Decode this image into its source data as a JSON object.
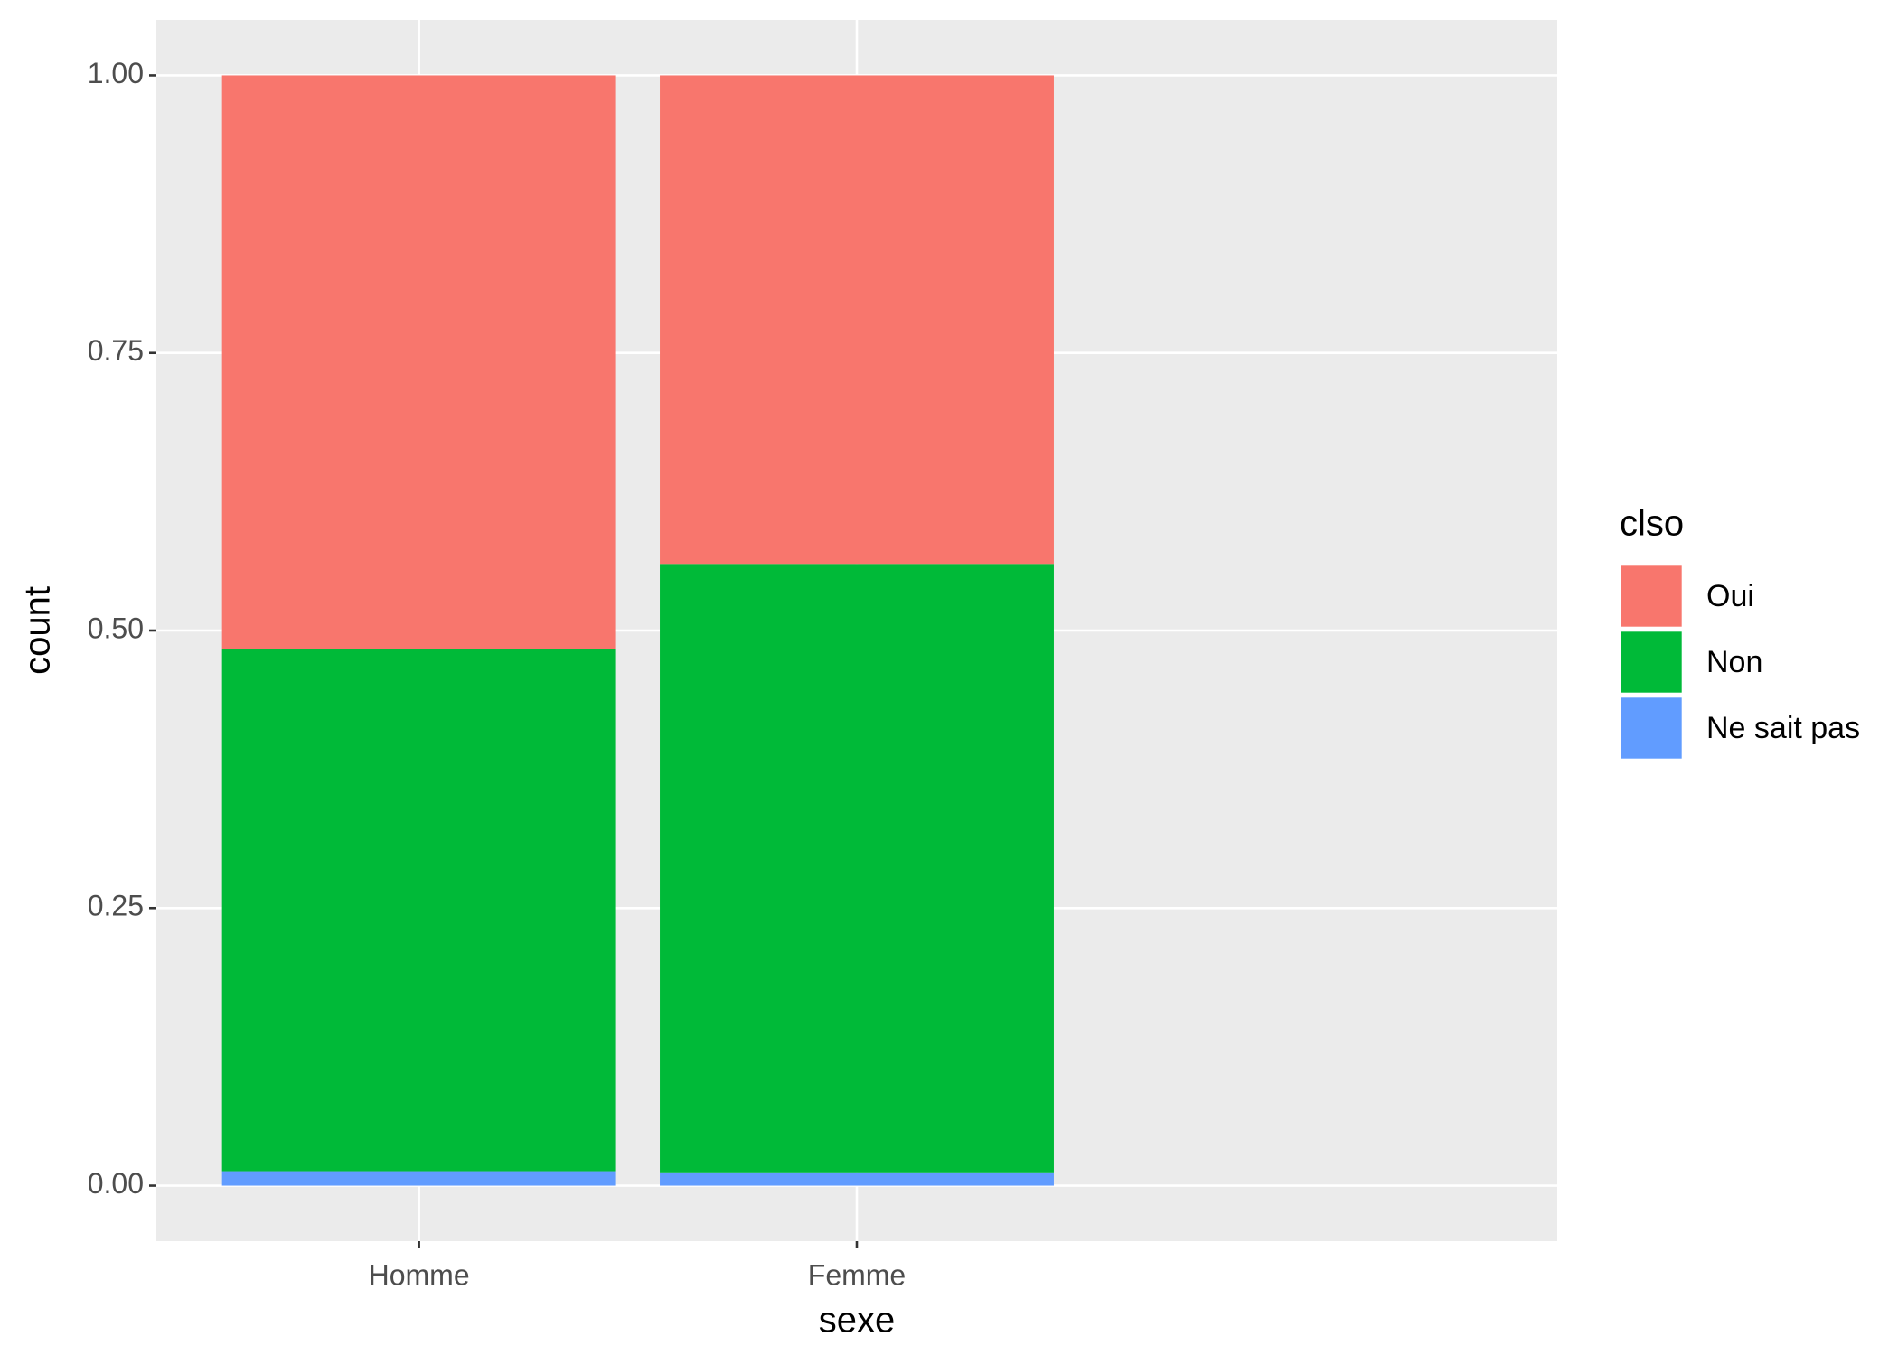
{
  "chart_data": {
    "type": "stacked_bar",
    "x_label": "sexe",
    "y_label": "count",
    "categories": [
      "Homme",
      "Femme"
    ],
    "series": [
      {
        "name": "Oui",
        "color": "#F8766D",
        "values": [
          0.517,
          0.44
        ]
      },
      {
        "name": "Non",
        "color": "#00BA38",
        "values": [
          0.47,
          0.548
        ]
      },
      {
        "name": "Ne sait pas",
        "color": "#619CFF",
        "values": [
          0.013,
          0.012
        ]
      }
    ],
    "legend_title": "clso",
    "legend_position": "right",
    "ylim": [
      -0.05,
      1.05
    ],
    "yticks": [
      {
        "value": 0,
        "label": "0.00"
      },
      {
        "value": 0.25,
        "label": "0.25"
      },
      {
        "value": 0.5,
        "label": "0.50"
      },
      {
        "value": 0.75,
        "label": "0.75"
      },
      {
        "value": 1,
        "label": "1.00"
      }
    ],
    "grid": true
  }
}
